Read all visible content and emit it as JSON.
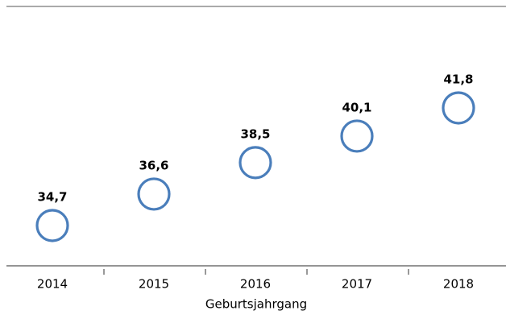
{
  "chart_data": {
    "type": "line",
    "show_line": false,
    "x_label": "Geburtsjahrgang",
    "categories": [
      "2014",
      "2015",
      "2016",
      "2017",
      "2018"
    ],
    "values": [
      34.7,
      36.6,
      38.5,
      40.1,
      41.8
    ],
    "value_labels": [
      "34,7",
      "36,6",
      "38,5",
      "40,1",
      "41,8"
    ],
    "color": "#4a7ebb",
    "ylim": [
      32,
      48
    ]
  }
}
